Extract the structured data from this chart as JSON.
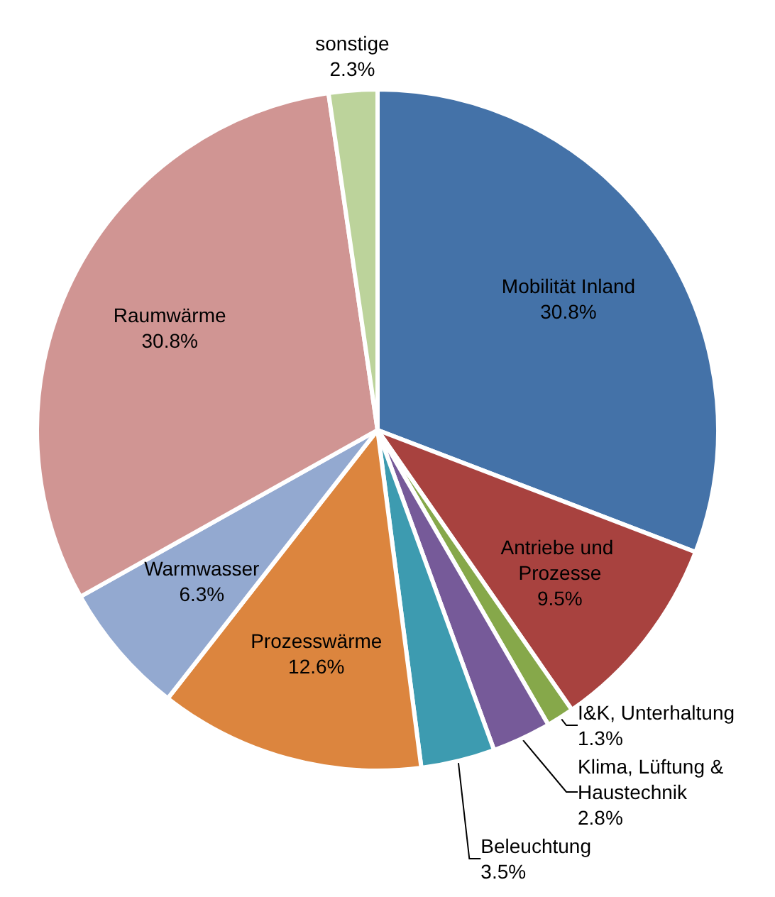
{
  "chart_data": {
    "type": "pie",
    "categories": [
      "Mobilität Inland",
      "Antriebe und Prozesse",
      "I&K, Unterhaltung",
      "Klima, Lüftung & Haustechnik",
      "Beleuchtung",
      "Prozesswärme",
      "Warmwasser",
      "Raumwärme",
      "sonstige"
    ],
    "values": [
      30.8,
      9.5,
      1.3,
      2.8,
      3.5,
      12.6,
      6.3,
      30.8,
      2.3
    ],
    "value_labels": [
      "30.8%",
      "9.5%",
      "1.3%",
      "2.8%",
      "3.5%",
      "12.6%",
      "6.3%",
      "30.8%",
      "2.3%"
    ],
    "colors": [
      "#4472a8",
      "#a8423f",
      "#86a84a",
      "#765a99",
      "#3d9bb0",
      "#dc853e",
      "#93a9d0",
      "#d09593",
      "#bcd39b"
    ]
  }
}
